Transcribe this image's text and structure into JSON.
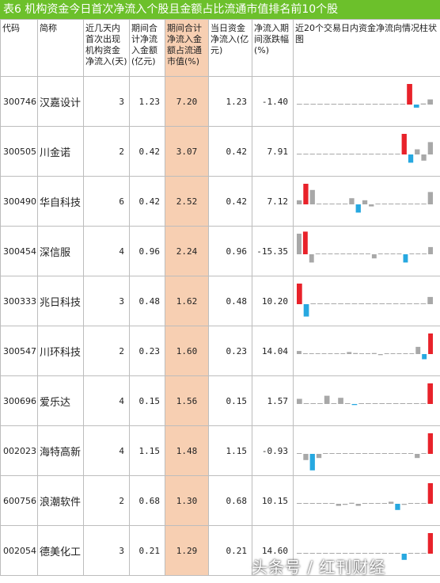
{
  "title": "表6 机构资金今日首次净流入个股且金额占比流通市值排名前10个股",
  "columns": [
    "代码",
    "简称",
    "近几天内首次出现机构资金净流入(天)",
    "期间合计净流入金额(亿元)",
    "期间合计净流入金额占流通市值(%)",
    "当日资金净流入(亿元)",
    "净流入期间涨跌幅(%)",
    "近20个交易日内资金净流向情况柱状图"
  ],
  "colors": {
    "title_bg": "#6cc02b",
    "highlight": "#f7cfb2",
    "bar_red": "#e8222a",
    "bar_blue": "#27a8e0",
    "bar_gray": "#a8a8a8"
  },
  "rows": [
    {
      "code": "300746",
      "name": "汉嘉设计",
      "days": "3",
      "total": "1.23",
      "ratio": "7.20",
      "today": "1.23",
      "change": "-1.40",
      "bars": [
        0.02,
        0.02,
        0.02,
        0.02,
        0.02,
        0.02,
        0.02,
        0.02,
        0.02,
        0.02,
        0.02,
        0.02,
        0.02,
        0.02,
        0.02,
        0.02,
        1.0,
        -0.15,
        0.05,
        0.25
      ],
      "red_index": 16,
      "blue_index": 17
    },
    {
      "code": "300505",
      "name": "川金诺",
      "days": "2",
      "total": "0.42",
      "ratio": "3.07",
      "today": "0.42",
      "change": "7.91",
      "bars": [
        0.02,
        0.02,
        0.02,
        0.02,
        0.02,
        0.02,
        0.02,
        0.02,
        0.02,
        0.02,
        0.02,
        0.02,
        0.02,
        0.02,
        0.02,
        0.02,
        1.0,
        -0.4,
        0.25,
        -0.3,
        0.6
      ],
      "red_index": 16,
      "blue_index": 17
    },
    {
      "code": "300490",
      "name": "华自科技",
      "days": "6",
      "total": "0.42",
      "ratio": "2.52",
      "today": "0.42",
      "change": "7.12",
      "bars": [
        0.2,
        1.0,
        0.7,
        0.02,
        0.02,
        0.02,
        0.02,
        0.02,
        0.3,
        -0.4,
        0.2,
        -0.1,
        0.02,
        0.02,
        0.02,
        0.02,
        0.02,
        0.02,
        0.02,
        0.02,
        0.6
      ],
      "red_index": 1,
      "blue_index": 9
    },
    {
      "code": "300454",
      "name": "深信服",
      "days": "4",
      "total": "0.96",
      "ratio": "2.24",
      "today": "0.96",
      "change": "-15.35",
      "bars": [
        1.0,
        1.1,
        -0.4,
        0.02,
        0.02,
        0.02,
        0.02,
        0.02,
        0.02,
        0.02,
        0.02,
        0.02,
        -0.2,
        0.02,
        0.02,
        0.02,
        0.02,
        -0.4,
        0.02,
        0.02,
        0.02,
        0.35
      ],
      "red_index": 1,
      "blue_index": 17
    },
    {
      "code": "300333",
      "name": "兆日科技",
      "days": "3",
      "total": "0.48",
      "ratio": "1.62",
      "today": "0.48",
      "change": "10.20",
      "bars": [
        1.0,
        -0.6,
        0.02,
        0.02,
        0.02,
        0.02,
        0.02,
        0.02,
        0.02,
        0.02,
        0.02,
        0.02,
        0.02,
        0.02,
        0.02,
        0.02,
        0.02,
        0.02,
        0.02,
        0.35
      ],
      "red_index": 0,
      "blue_index": 1
    },
    {
      "code": "300547",
      "name": "川环科技",
      "days": "2",
      "total": "0.23",
      "ratio": "1.60",
      "today": "0.23",
      "change": "14.04",
      "bars": [
        0.15,
        0.02,
        0.02,
        0.02,
        0.02,
        0.02,
        0.02,
        0.02,
        0.1,
        0.05,
        0.02,
        0.02,
        0.05,
        -0.05,
        0.02,
        0.02,
        0.02,
        0.02,
        0.02,
        0.35,
        -0.25,
        1.0
      ],
      "red_index": 21,
      "blue_index": 20
    },
    {
      "code": "300696",
      "name": "爱乐达",
      "days": "4",
      "total": "0.15",
      "ratio": "1.56",
      "today": "0.15",
      "change": "1.57",
      "bars": [
        0.25,
        0.02,
        0.02,
        0.02,
        0.4,
        0.02,
        0.3,
        0.02,
        -0.05,
        0.02,
        0.02,
        0.02,
        0.02,
        0.02,
        0.02,
        0.02,
        0.02,
        0.02,
        0.02,
        1.0
      ],
      "red_index": 19,
      "blue_index": 8
    },
    {
      "code": "002023",
      "name": "海特高新",
      "days": "4",
      "total": "1.15",
      "ratio": "1.48",
      "today": "1.15",
      "change": "-0.93",
      "bars": [
        0.02,
        -0.3,
        -0.8,
        -0.2,
        0.02,
        0.02,
        0.02,
        0.02,
        0.02,
        0.02,
        0.02,
        0.02,
        0.02,
        0.02,
        0.02,
        0.02,
        0.02,
        0.02,
        -0.2,
        0.02,
        1.0
      ],
      "red_index": 20,
      "blue_index": 2
    },
    {
      "code": "600756",
      "name": "浪潮软件",
      "days": "2",
      "total": "0.68",
      "ratio": "1.30",
      "today": "0.68",
      "change": "10.15",
      "bars": [
        0.02,
        0.02,
        0.02,
        0.02,
        0.02,
        0.02,
        -0.1,
        -0.05,
        0.05,
        -0.1,
        0.02,
        0.02,
        0.02,
        0.02,
        0.1,
        -0.3,
        -0.05,
        0.02,
        0.02,
        0.02,
        1.0
      ],
      "red_index": 20,
      "blue_index": 15
    },
    {
      "code": "002054",
      "name": "德美化工",
      "days": "3",
      "total": "0.21",
      "ratio": "1.29",
      "today": "0.21",
      "change": "14.60",
      "bars": [
        0.02,
        0.02,
        0.02,
        0.02,
        0.02,
        0.02,
        0.02,
        0.02,
        0.02,
        0.02,
        0.02,
        0.02,
        0.02,
        0.02,
        0.02,
        0.02,
        -0.3,
        0.02,
        0.02,
        0.02,
        1.0
      ],
      "red_index": 20,
      "blue_index": 16
    }
  ],
  "watermark": "头条号 / 红刊财经"
}
